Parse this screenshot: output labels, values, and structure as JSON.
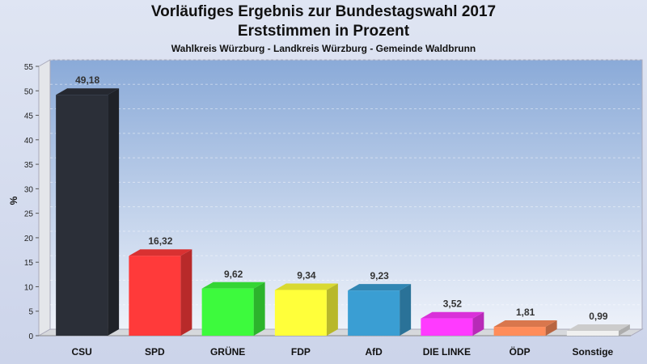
{
  "chart_data": {
    "type": "bar",
    "title": "Vorläufiges Ergebnis zur Bundestagswahl 2017",
    "subtitle": "Erststimmen in Prozent",
    "subsubtitle": "Wahlkreis Würzburg - Landkreis Würzburg - Gemeinde Waldbrunn",
    "ylabel": "%",
    "xlabel": "",
    "ylim": [
      0,
      55
    ],
    "yticks": [
      0,
      5,
      10,
      15,
      20,
      25,
      30,
      35,
      40,
      45,
      50,
      55
    ],
    "categories": [
      "CSU",
      "SPD",
      "GRÜNE",
      "FDP",
      "AfD",
      "DIE LINKE",
      "ÖDP",
      "Sonstige"
    ],
    "values": [
      49.18,
      16.32,
      9.62,
      9.34,
      9.23,
      3.52,
      1.81,
      0.99
    ],
    "value_labels": [
      "49,18",
      "16,32",
      "9,62",
      "9,34",
      "9,23",
      "3,52",
      "1,81",
      "0,99"
    ],
    "colors": [
      "#2b2f38",
      "#ff3a3a",
      "#3dfa3d",
      "#ffff3a",
      "#3a9ed3",
      "#ff3aff",
      "#ff8c5a",
      "#f0f0f0"
    ],
    "grid": true
  }
}
